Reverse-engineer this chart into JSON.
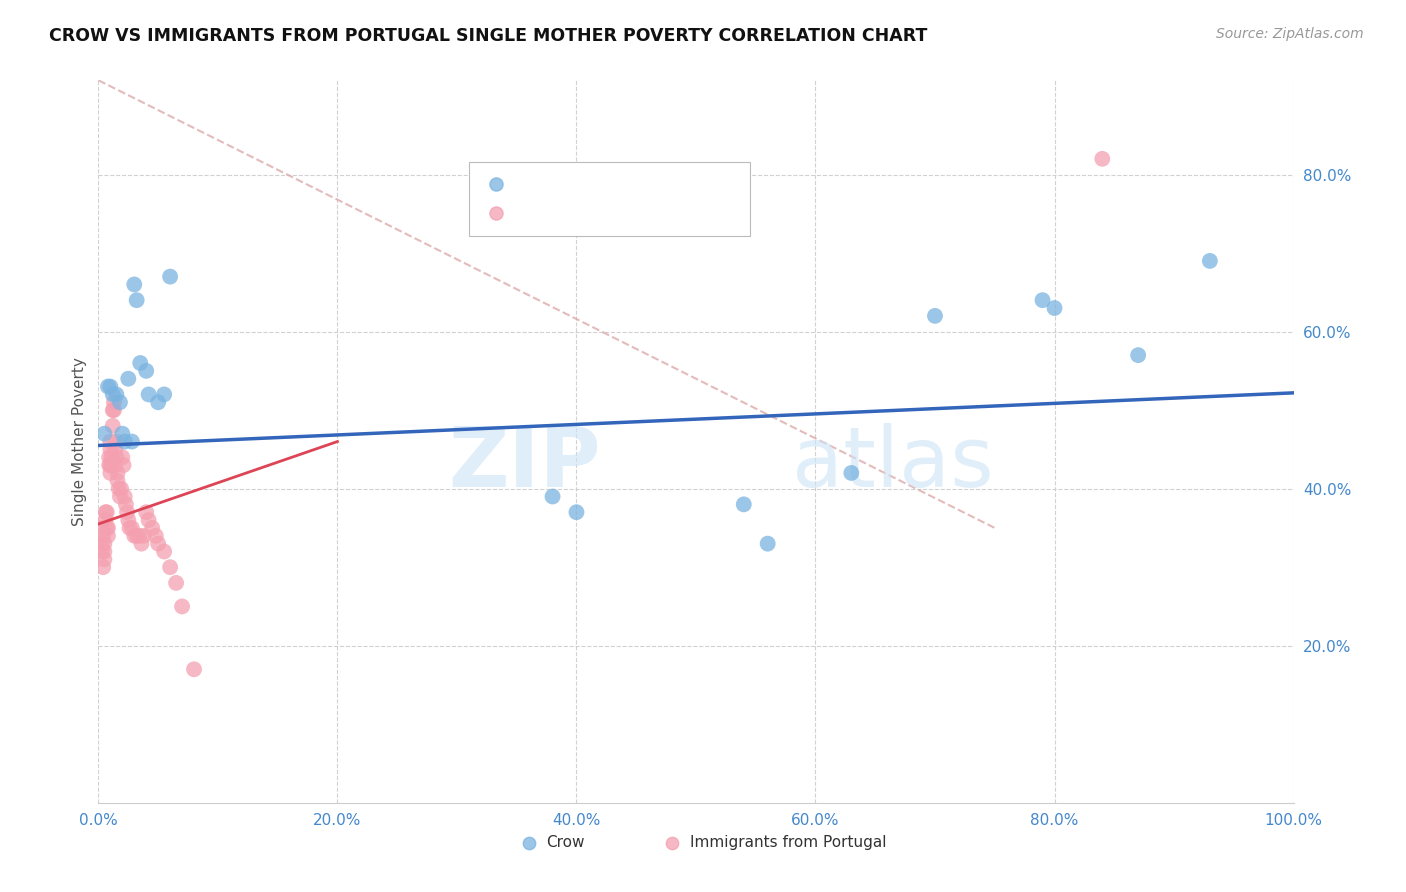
{
  "title": "CROW VS IMMIGRANTS FROM PORTUGAL SINGLE MOTHER POVERTY CORRELATION CHART",
  "source": "Source: ZipAtlas.com",
  "ylabel": "Single Mother Poverty",
  "legend_blue_label": "Crow",
  "legend_pink_label": "Immigrants from Portugal",
  "watermark_zip": "ZIP",
  "watermark_atlas": "atlas",
  "xlim": [
    0,
    1
  ],
  "ylim": [
    0,
    0.92
  ],
  "yticks": [
    0.2,
    0.4,
    0.6,
    0.8
  ],
  "ytick_labels": [
    "20.0%",
    "40.0%",
    "60.0%",
    "80.0%"
  ],
  "xticks": [
    0.0,
    0.2,
    0.4,
    0.6,
    0.8,
    1.0
  ],
  "xtick_labels": [
    "0.0%",
    "20.0%",
    "40.0%",
    "60.0%",
    "80.0%",
    "100.0%"
  ],
  "bg_color": "#ffffff",
  "blue_color": "#7ab3e0",
  "pink_color": "#f4a0b0",
  "trend_blue_color": "#3366bb",
  "trend_pink_color": "#dd4455",
  "trend_pink_dash_color": "#ddaaaa",
  "grid_color": "#cccccc",
  "tick_color": "#4488cc",
  "crow_x": [
    0.005,
    0.008,
    0.01,
    0.012,
    0.015,
    0.018,
    0.02,
    0.022,
    0.025,
    0.028,
    0.03,
    0.032,
    0.035,
    0.04,
    0.042,
    0.05,
    0.055,
    0.06,
    0.38,
    0.4,
    0.54,
    0.56,
    0.63,
    0.7,
    0.79,
    0.8,
    0.87,
    0.93
  ],
  "crow_y": [
    0.47,
    0.53,
    0.53,
    0.52,
    0.52,
    0.51,
    0.47,
    0.46,
    0.54,
    0.46,
    0.66,
    0.64,
    0.56,
    0.55,
    0.52,
    0.51,
    0.52,
    0.67,
    0.39,
    0.37,
    0.38,
    0.33,
    0.42,
    0.62,
    0.64,
    0.63,
    0.57,
    0.69
  ],
  "portugal_x": [
    0.002,
    0.003,
    0.003,
    0.004,
    0.004,
    0.005,
    0.005,
    0.005,
    0.006,
    0.006,
    0.007,
    0.007,
    0.008,
    0.008,
    0.009,
    0.009,
    0.01,
    0.01,
    0.01,
    0.01,
    0.011,
    0.011,
    0.012,
    0.012,
    0.013,
    0.013,
    0.014,
    0.014,
    0.015,
    0.015,
    0.016,
    0.016,
    0.017,
    0.018,
    0.019,
    0.02,
    0.021,
    0.022,
    0.023,
    0.024,
    0.025,
    0.026,
    0.028,
    0.03,
    0.032,
    0.034,
    0.036,
    0.038,
    0.04,
    0.042,
    0.045,
    0.048,
    0.05,
    0.055,
    0.06,
    0.065,
    0.07,
    0.08,
    0.84
  ],
  "portugal_y": [
    0.35,
    0.33,
    0.32,
    0.34,
    0.3,
    0.33,
    0.32,
    0.31,
    0.37,
    0.36,
    0.37,
    0.35,
    0.35,
    0.34,
    0.44,
    0.43,
    0.46,
    0.45,
    0.43,
    0.42,
    0.44,
    0.43,
    0.5,
    0.48,
    0.51,
    0.5,
    0.45,
    0.43,
    0.46,
    0.44,
    0.42,
    0.41,
    0.4,
    0.39,
    0.4,
    0.44,
    0.43,
    0.39,
    0.38,
    0.37,
    0.36,
    0.35,
    0.35,
    0.34,
    0.34,
    0.34,
    0.33,
    0.34,
    0.37,
    0.36,
    0.35,
    0.34,
    0.33,
    0.32,
    0.3,
    0.28,
    0.25,
    0.17,
    0.82
  ]
}
